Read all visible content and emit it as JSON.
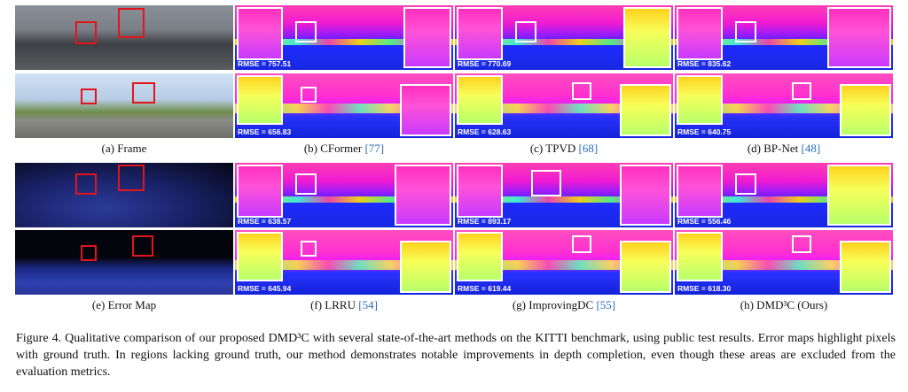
{
  "panels": [
    {
      "caption": "(a) Frame",
      "ref": ""
    },
    {
      "caption": "(b) CFormer",
      "ref": "77",
      "rmse_top": "RMSE = 757.51",
      "rmse_bottom": "RMSE = 656.83"
    },
    {
      "caption": "(c) TPVD",
      "ref": "68",
      "rmse_top": "RMSE = 770.69",
      "rmse_bottom": "RMSE = 628.63"
    },
    {
      "caption": "(d) BP-Net",
      "ref": "48",
      "rmse_top": "RMSE = 835.62",
      "rmse_bottom": "RMSE = 640.75"
    },
    {
      "caption": "(e) Error Map",
      "ref": ""
    },
    {
      "caption": "(f) LRRU",
      "ref": "54",
      "rmse_top": "RMSE = 638.57",
      "rmse_bottom": "RMSE = 645.94"
    },
    {
      "caption": "(g) ImprovingDC",
      "ref": "55",
      "rmse_top": "RMSE = 893.17",
      "rmse_bottom": "RMSE = 619.44"
    },
    {
      "caption": "(h) DMD³C (Ours)",
      "ref": "",
      "rmse_top": "RMSE = 556.46",
      "rmse_bottom": "RMSE = 618.30"
    }
  ],
  "figure_caption": "Figure 4. Qualitative comparison of our proposed DMD³C with several state-of-the-art methods on the KITTI benchmark, using public test results. Error maps highlight pixels with ground truth. In regions lacking ground truth, our method demonstrates notable improvements in depth completion, even though these areas are excluded from the evaluation metrics.",
  "colors": {
    "highlight_box": "#e3141b",
    "zoom_box": "#ffffff",
    "citation": "#2a6db8"
  }
}
